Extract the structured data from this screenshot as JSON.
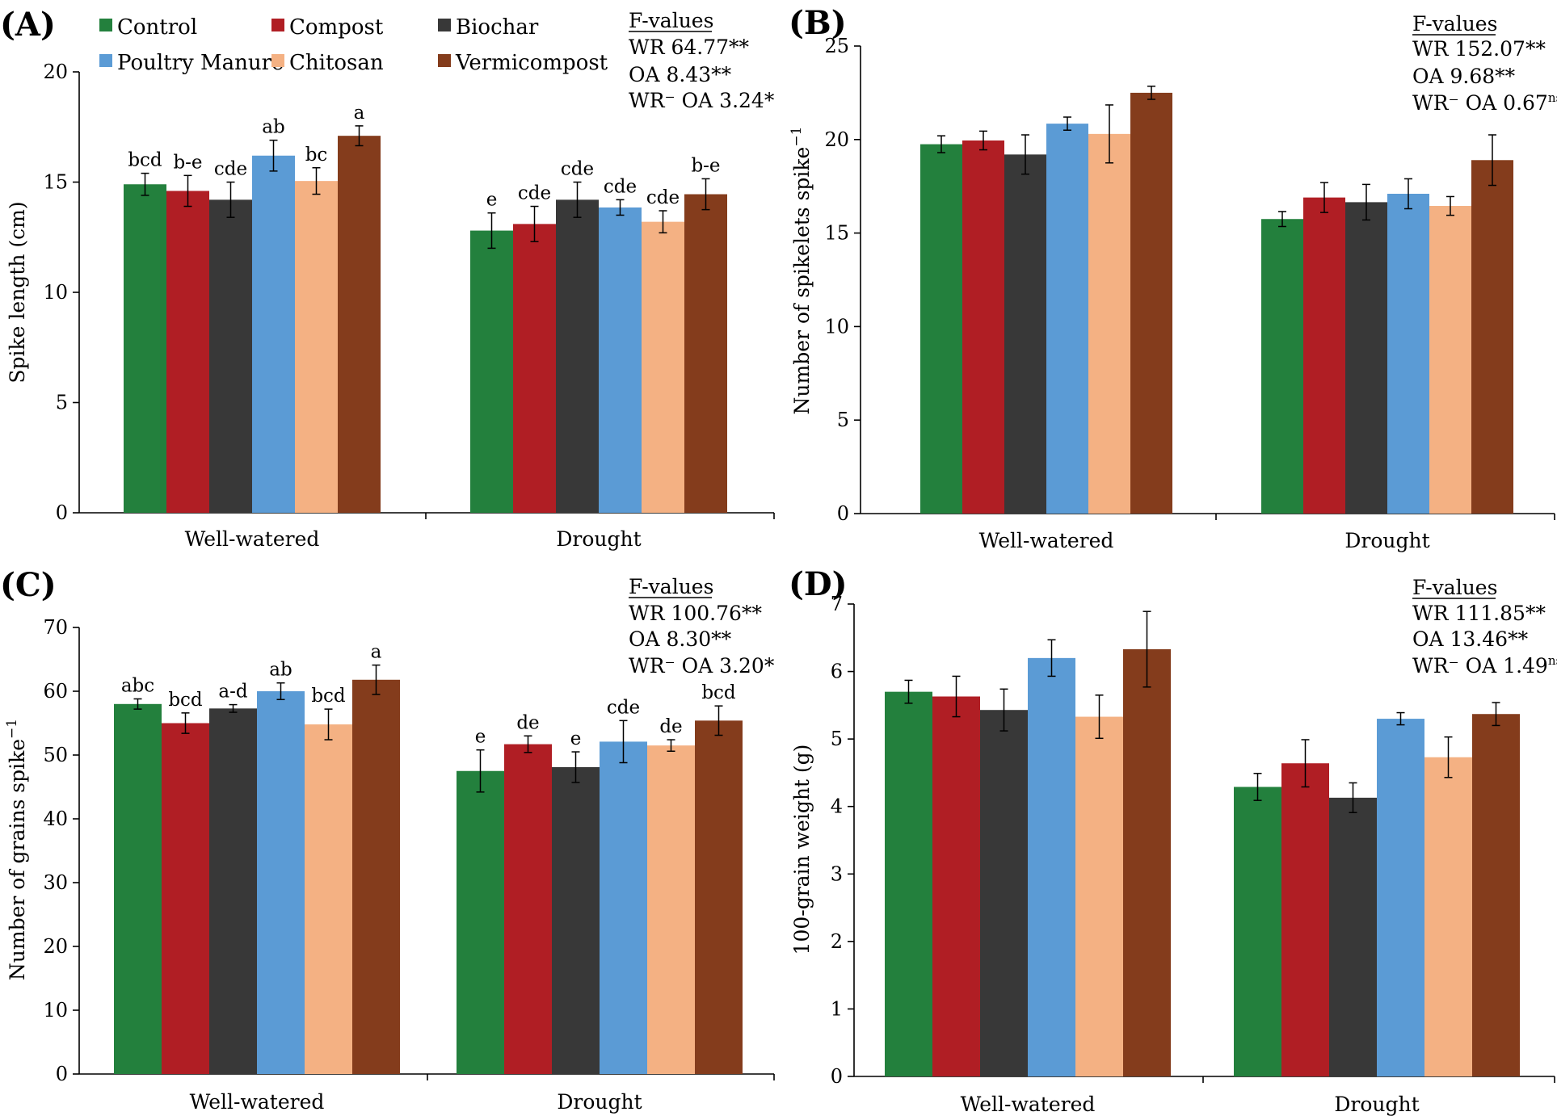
{
  "legend": [
    {
      "label": "Control",
      "color": "#23803d"
    },
    {
      "label": "Compost",
      "color": "#b01e24"
    },
    {
      "label": "Biochar",
      "color": "#383838"
    },
    {
      "label": "Poultry Manure",
      "color": "#5b9bd5"
    },
    {
      "label": "Chitosan",
      "color": "#f4b183"
    },
    {
      "label": "Vermicompost",
      "color": "#843c1c"
    }
  ],
  "chart_data": [
    {
      "type": "bar",
      "panel": "(A)",
      "ylabel": "Spike length (cm)",
      "ylabel_sup": "",
      "ylim": [
        0,
        20
      ],
      "yticks": [
        "0",
        "5",
        "10",
        "15",
        "20"
      ],
      "ytick_values": [
        0,
        5,
        10,
        15,
        20
      ],
      "categories": [
        "Well-watered",
        "Drought"
      ],
      "series": [
        {
          "name": "Control",
          "values": [
            14.9,
            12.8
          ],
          "errors": [
            0.5,
            0.8
          ],
          "letters": [
            "bcd",
            "e"
          ]
        },
        {
          "name": "Compost",
          "values": [
            14.6,
            13.1
          ],
          "errors": [
            0.7,
            0.8
          ],
          "letters": [
            "b-e",
            "cde"
          ]
        },
        {
          "name": "Biochar",
          "values": [
            14.2,
            14.2
          ],
          "errors": [
            0.8,
            0.8
          ],
          "letters": [
            "cde",
            "cde"
          ]
        },
        {
          "name": "Poultry Manure",
          "values": [
            16.2,
            13.85
          ],
          "errors": [
            0.7,
            0.35
          ],
          "letters": [
            "ab",
            "cde"
          ]
        },
        {
          "name": "Chitosan",
          "values": [
            15.05,
            13.2
          ],
          "errors": [
            0.6,
            0.5
          ],
          "letters": [
            "bc",
            "cde"
          ]
        },
        {
          "name": "Vermicompost",
          "values": [
            17.1,
            14.45
          ],
          "errors": [
            0.45,
            0.7
          ],
          "letters": [
            "a",
            "b-e"
          ]
        }
      ],
      "fvalues": {
        "heading": "F-values",
        "lines": [
          {
            "label": "WR 64.77**",
            "sup": ""
          },
          {
            "label": "OA 8.43**",
            "sup": ""
          },
          {
            "label": "WR⁻ OA 3.24*",
            "sup": ""
          }
        ]
      }
    },
    {
      "type": "bar",
      "panel": "(B)",
      "ylabel": "Number of spikelets  spike",
      "ylabel_sup": "−1",
      "ylim": [
        0,
        25
      ],
      "yticks": [
        "0",
        "5",
        "10",
        "15",
        "20",
        "25"
      ],
      "ytick_values": [
        0,
        5,
        10,
        15,
        20,
        25
      ],
      "categories": [
        "Well-watered",
        "Drought"
      ],
      "series": [
        {
          "name": "Control",
          "values": [
            19.75,
            15.75
          ],
          "errors": [
            0.45,
            0.4
          ],
          "letters": [
            "",
            ""
          ]
        },
        {
          "name": "Compost",
          "values": [
            19.95,
            16.9
          ],
          "errors": [
            0.5,
            0.8
          ],
          "letters": [
            "",
            ""
          ]
        },
        {
          "name": "Biochar",
          "values": [
            19.2,
            16.65
          ],
          "errors": [
            1.05,
            0.95
          ],
          "letters": [
            "",
            ""
          ]
        },
        {
          "name": "Poultry Manure",
          "values": [
            20.85,
            17.1
          ],
          "errors": [
            0.35,
            0.8
          ],
          "letters": [
            "",
            ""
          ]
        },
        {
          "name": "Chitosan",
          "values": [
            20.3,
            16.45
          ],
          "errors": [
            1.55,
            0.5
          ],
          "letters": [
            "",
            ""
          ]
        },
        {
          "name": "Vermicompost",
          "values": [
            22.5,
            18.9
          ],
          "errors": [
            0.35,
            1.35
          ],
          "letters": [
            "",
            ""
          ]
        }
      ],
      "fvalues": {
        "heading": "F-values",
        "lines": [
          {
            "label": "WR 152.07**",
            "sup": ""
          },
          {
            "label": "OA 9.68**",
            "sup": ""
          },
          {
            "label": "WR⁻ OA 0.67",
            "sup": "ns"
          }
        ]
      }
    },
    {
      "type": "bar",
      "panel": "(C)",
      "ylabel": "Number of grains spike",
      "ylabel_sup": "−1",
      "ylim": [
        0,
        70
      ],
      "yticks": [
        "0",
        "10",
        "20",
        "30",
        "40",
        "50",
        "60",
        "70"
      ],
      "ytick_values": [
        0,
        10,
        20,
        30,
        40,
        50,
        60,
        70
      ],
      "categories": [
        "Well-watered",
        "Drought"
      ],
      "series": [
        {
          "name": "Control",
          "values": [
            58.0,
            47.5
          ],
          "errors": [
            0.8,
            3.3
          ],
          "letters": [
            "abc",
            "e"
          ]
        },
        {
          "name": "Compost",
          "values": [
            55.0,
            51.7
          ],
          "errors": [
            1.6,
            1.3
          ],
          "letters": [
            "bcd",
            "de"
          ]
        },
        {
          "name": "Biochar",
          "values": [
            57.3,
            48.1
          ],
          "errors": [
            0.6,
            2.4
          ],
          "letters": [
            "a-d",
            "e"
          ]
        },
        {
          "name": "Poultry Manure",
          "values": [
            60.0,
            52.1
          ],
          "errors": [
            1.3,
            3.3
          ],
          "letters": [
            "ab",
            "cde"
          ]
        },
        {
          "name": "Chitosan",
          "values": [
            54.8,
            51.5
          ],
          "errors": [
            2.4,
            0.9
          ],
          "letters": [
            "bcd",
            "de"
          ]
        },
        {
          "name": "Vermicompost",
          "values": [
            61.8,
            55.4
          ],
          "errors": [
            2.3,
            2.3
          ],
          "letters": [
            "a",
            "bcd"
          ]
        }
      ],
      "fvalues": {
        "heading": "F-values",
        "lines": [
          {
            "label": "WR 100.76**",
            "sup": ""
          },
          {
            "label": "OA 8.30**",
            "sup": ""
          },
          {
            "label": "WR⁻ OA 3.20*",
            "sup": ""
          }
        ]
      }
    },
    {
      "type": "bar",
      "panel": "(D)",
      "ylabel": "100-grain weight (g)",
      "ylabel_sup": "",
      "ylim": [
        0,
        7
      ],
      "yticks": [
        "0",
        "1",
        "2",
        "3",
        "4",
        "5",
        "6",
        "7"
      ],
      "ytick_values": [
        0,
        1,
        2,
        3,
        4,
        5,
        6,
        7
      ],
      "categories": [
        "Well-watered",
        "Drought"
      ],
      "series": [
        {
          "name": "Control",
          "values": [
            5.7,
            4.29
          ],
          "errors": [
            0.17,
            0.2
          ],
          "letters": [
            "",
            ""
          ]
        },
        {
          "name": "Compost",
          "values": [
            5.63,
            4.64
          ],
          "errors": [
            0.3,
            0.35
          ],
          "letters": [
            "",
            ""
          ]
        },
        {
          "name": "Biochar",
          "values": [
            5.43,
            4.13
          ],
          "errors": [
            0.31,
            0.22
          ],
          "letters": [
            "",
            ""
          ]
        },
        {
          "name": "Poultry Manure",
          "values": [
            6.2,
            5.3
          ],
          "errors": [
            0.27,
            0.09
          ],
          "letters": [
            "",
            ""
          ]
        },
        {
          "name": "Chitosan",
          "values": [
            5.33,
            4.73
          ],
          "errors": [
            0.32,
            0.3
          ],
          "letters": [
            "",
            ""
          ]
        },
        {
          "name": "Vermicompost",
          "values": [
            6.33,
            5.37
          ],
          "errors": [
            0.56,
            0.17
          ],
          "letters": [
            "",
            ""
          ]
        }
      ],
      "fvalues": {
        "heading": "F-values",
        "lines": [
          {
            "label": "WR 111.85**",
            "sup": ""
          },
          {
            "label": "OA 13.46**",
            "sup": ""
          },
          {
            "label": "WR⁻ OA 1.49",
            "sup": "ns"
          }
        ]
      }
    }
  ]
}
